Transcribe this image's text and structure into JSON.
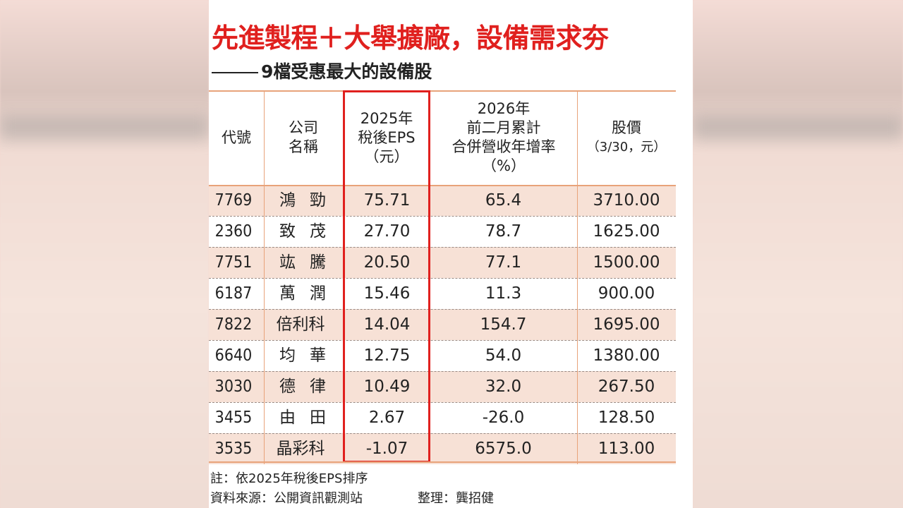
{
  "title": "先進製程＋大舉擴廠，設備需求夯",
  "subtitle": "9檔受惠最大的設備股",
  "headers": {
    "code": "代號",
    "name_l1": "公司",
    "name_l2": "名稱",
    "eps_l1": "2025年",
    "eps_l2": "稅後EPS",
    "eps_l3": "（元）",
    "rev_l1": "2026年",
    "rev_l2": "前二月累計",
    "rev_l3": "合併營收年增率",
    "rev_l4": "（%）",
    "price_l1": "股價",
    "price_l2": "（3/30，元）"
  },
  "rows": [
    {
      "code": "7769",
      "name": "鴻勁",
      "eps": "75.71",
      "rev": "65.4",
      "price": "3710.00"
    },
    {
      "code": "2360",
      "name": "致茂",
      "eps": "27.70",
      "rev": "78.7",
      "price": "1625.00"
    },
    {
      "code": "7751",
      "name": "竑騰",
      "eps": "20.50",
      "rev": "77.1",
      "price": "1500.00"
    },
    {
      "code": "6187",
      "name": "萬潤",
      "eps": "15.46",
      "rev": "11.3",
      "price": "900.00"
    },
    {
      "code": "7822",
      "name": "倍利科",
      "eps": "14.04",
      "rev": "154.7",
      "price": "1695.00"
    },
    {
      "code": "6640",
      "name": "均華",
      "eps": "12.75",
      "rev": "54.0",
      "price": "1380.00"
    },
    {
      "code": "3030",
      "name": "德律",
      "eps": "10.49",
      "rev": "32.0",
      "price": "267.50"
    },
    {
      "code": "3455",
      "name": "由田",
      "eps": "2.67",
      "rev": "-26.0",
      "price": "128.50"
    },
    {
      "code": "3535",
      "name": "晶彩科",
      "eps": "-1.07",
      "rev": "6575.0",
      "price": "113.00"
    }
  ],
  "note": "註：依2025年稅後EPS排序",
  "source": "資料來源：公開資訊觀測站",
  "editor": "整理：龔招健",
  "colors": {
    "title": "#e0201e",
    "highlight_box": "#e0201e",
    "rule": "#e8a37a",
    "row_shade": "#f7e1d6"
  }
}
